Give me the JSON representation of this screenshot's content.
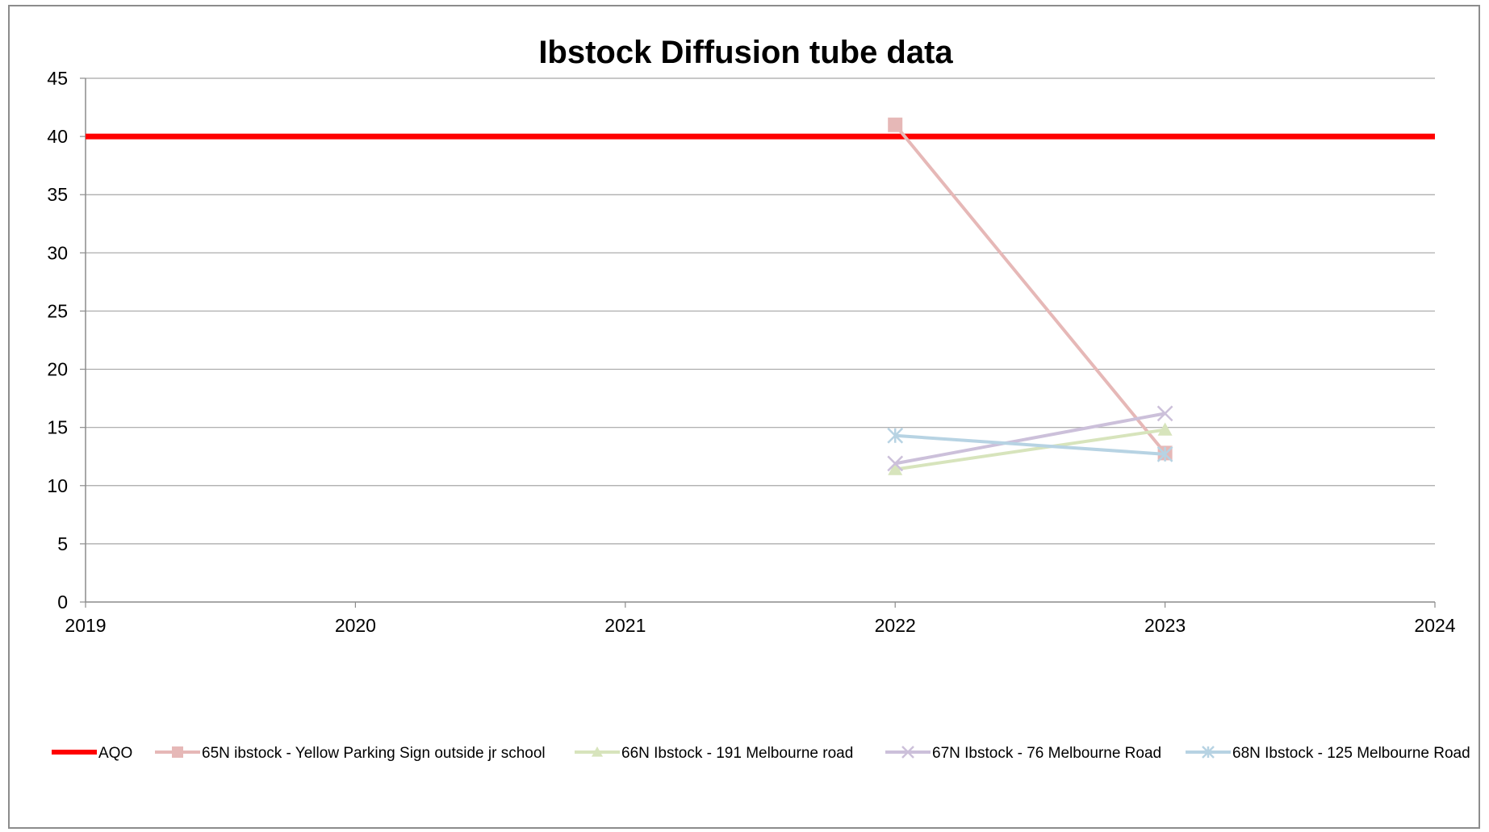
{
  "chart_data": {
    "type": "line",
    "title": "Ibstock Diffusion tube data",
    "xlabel": "",
    "ylabel": "",
    "xlim": [
      2019,
      2024
    ],
    "ylim": [
      0,
      45
    ],
    "x_ticks": [
      "2019",
      "2020",
      "2021",
      "2022",
      "2023",
      "2024"
    ],
    "y_ticks": [
      "0",
      "5",
      "10",
      "15",
      "20",
      "25",
      "30",
      "35",
      "40",
      "45"
    ],
    "grid": "horizontal",
    "legend_position": "bottom",
    "series": [
      {
        "name": "AQO",
        "color": "#ff0000",
        "marker": "none",
        "x": [
          2019,
          2024
        ],
        "y": [
          40,
          40
        ]
      },
      {
        "name": "65N ibstock - Yellow Parking Sign outside jr school",
        "color": "#e6b8b7",
        "marker": "square",
        "x": [
          2022,
          2023
        ],
        "y": [
          41,
          12.8
        ]
      },
      {
        "name": "66N Ibstock - 191 Melbourne road",
        "color": "#d7e4bc",
        "marker": "triangle",
        "x": [
          2022,
          2023
        ],
        "y": [
          11.4,
          14.8
        ]
      },
      {
        "name": "67N Ibstock - 76 Melbourne Road",
        "color": "#ccc0da",
        "marker": "x",
        "x": [
          2022,
          2023
        ],
        "y": [
          11.9,
          16.2
        ]
      },
      {
        "name": "68N Ibstock - 125 Melbourne Road",
        "color": "#b7d3e3",
        "marker": "asterisk",
        "x": [
          2022,
          2023
        ],
        "y": [
          14.3,
          12.7
        ]
      }
    ]
  }
}
